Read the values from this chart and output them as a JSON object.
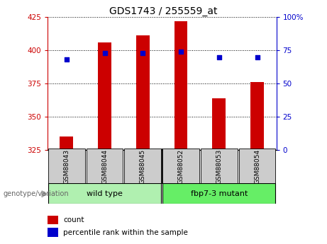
{
  "title": "GDS1743 / 255559_at",
  "samples": [
    "GSM88043",
    "GSM88044",
    "GSM88045",
    "GSM88052",
    "GSM88053",
    "GSM88054"
  ],
  "count_values": [
    335,
    406,
    411,
    422,
    364,
    376
  ],
  "percentile_values": [
    68,
    73,
    73,
    74,
    70,
    70
  ],
  "bar_baseline": 325,
  "ylim_left": [
    325,
    425
  ],
  "ylim_right": [
    0,
    100
  ],
  "yticks_left": [
    325,
    350,
    375,
    400,
    425
  ],
  "yticks_right": [
    0,
    25,
    50,
    75,
    100
  ],
  "bar_color": "#cc0000",
  "dot_color": "#0000cc",
  "left_axis_color": "#cc0000",
  "right_axis_color": "#0000cc",
  "bar_width": 0.35,
  "wild_type_color": "#b0f0b0",
  "mutant_color": "#66ee66",
  "tick_bg_color": "#cccccc"
}
